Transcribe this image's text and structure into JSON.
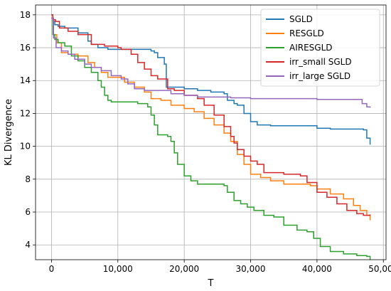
{
  "chart_data": {
    "type": "line",
    "title": "",
    "xlabel": "T",
    "ylabel": "KL Divergence",
    "xlim": [
      -2400,
      50400
    ],
    "ylim": [
      3.1,
      18.6
    ],
    "x_ticks": [
      0,
      10000,
      20000,
      30000,
      40000,
      50000
    ],
    "x_tick_labels": [
      "0",
      "10,000",
      "20,000",
      "30,000",
      "40,000",
      "50,000"
    ],
    "y_ticks": [
      4,
      6,
      8,
      10,
      12,
      14,
      16,
      18
    ],
    "y_tick_labels": [
      "4",
      "6",
      "8",
      "10",
      "12",
      "14",
      "16",
      "18"
    ],
    "grid": true,
    "legend_position": "top-right",
    "series": [
      {
        "name": "SGLD",
        "color": "#1f77b4",
        "x": [
          0,
          200,
          500,
          1000,
          2000,
          4000,
          5500,
          6000,
          7000,
          8500,
          10000,
          12000,
          14000,
          15000,
          15500,
          16000,
          17000,
          17300,
          18000,
          20000,
          22000,
          24000,
          26000,
          26500,
          27500,
          28000,
          29000,
          30000,
          31000,
          33000,
          35000,
          38000,
          40000,
          42000,
          44000,
          46000,
          47000,
          47500,
          48000
        ],
        "values": [
          18.0,
          17.6,
          17.4,
          17.3,
          17.2,
          16.9,
          16.4,
          16.2,
          16.0,
          15.9,
          15.9,
          15.9,
          15.9,
          15.8,
          15.7,
          15.4,
          15.0,
          13.6,
          13.6,
          13.5,
          13.4,
          13.3,
          13.2,
          12.8,
          12.6,
          12.5,
          12.0,
          11.5,
          11.3,
          11.25,
          11.25,
          11.25,
          11.1,
          11.05,
          11.05,
          11.05,
          11.0,
          10.5,
          10.1
        ]
      },
      {
        "name": "RESGLD",
        "color": "#ff7f0e",
        "x": [
          0,
          300,
          800,
          1500,
          2500,
          4000,
          5500,
          6500,
          7500,
          8500,
          10000,
          11000,
          12500,
          14000,
          15000,
          16500,
          18000,
          20000,
          21500,
          23000,
          24500,
          26000,
          27000,
          28000,
          29000,
          30000,
          31500,
          33000,
          35000,
          37500,
          39000,
          40000,
          42000,
          44000,
          45500,
          46500,
          47500,
          48000
        ],
        "values": [
          17.8,
          16.8,
          16.3,
          15.7,
          15.6,
          15.5,
          15.1,
          14.8,
          14.5,
          14.2,
          14.2,
          13.9,
          13.6,
          13.3,
          12.9,
          12.8,
          12.5,
          12.3,
          12.1,
          11.7,
          11.3,
          10.8,
          10.3,
          9.5,
          8.9,
          8.3,
          8.1,
          7.9,
          7.7,
          7.7,
          7.6,
          7.4,
          7.1,
          6.8,
          6.4,
          6.1,
          5.8,
          5.5
        ]
      },
      {
        "name": "AIRESGLD",
        "color": "#2ca02c",
        "x": [
          0,
          200,
          500,
          1000,
          2000,
          3000,
          4000,
          5000,
          6000,
          7000,
          7500,
          8000,
          8500,
          9000,
          11000,
          13000,
          14500,
          15000,
          15500,
          16000,
          17500,
          18000,
          18500,
          19000,
          20000,
          21000,
          22000,
          25000,
          26000,
          26500,
          27500,
          28500,
          29500,
          30500,
          32000,
          33500,
          35000,
          37000,
          38500,
          39500,
          40500,
          42000,
          44000,
          46000,
          47500,
          48000
        ],
        "values": [
          18.0,
          16.8,
          16.5,
          16.3,
          16.1,
          15.5,
          15.2,
          14.8,
          14.5,
          14.0,
          13.6,
          13.1,
          12.8,
          12.7,
          12.7,
          12.6,
          12.4,
          11.9,
          11.3,
          10.7,
          10.6,
          10.3,
          9.6,
          8.9,
          8.2,
          7.9,
          7.7,
          7.7,
          7.6,
          7.2,
          6.7,
          6.5,
          6.3,
          6.1,
          5.8,
          5.7,
          5.2,
          4.9,
          4.8,
          4.4,
          3.9,
          3.6,
          3.45,
          3.35,
          3.3,
          3.1
        ]
      },
      {
        "name": "irr_small SGLD",
        "color": "#d62728",
        "x": [
          0,
          200,
          600,
          1200,
          2500,
          4000,
          6000,
          8000,
          10000,
          10500,
          12000,
          13000,
          14000,
          15000,
          16000,
          17000,
          17500,
          18500,
          20000,
          22000,
          23000,
          24500,
          26000,
          27000,
          27500,
          28000,
          29000,
          30000,
          31000,
          32000,
          35000,
          37500,
          38500,
          40000,
          41500,
          43000,
          44500,
          46000,
          47000,
          48000
        ],
        "values": [
          18.0,
          17.7,
          17.6,
          17.2,
          17.0,
          16.8,
          16.2,
          16.1,
          16.0,
          15.9,
          15.6,
          15.1,
          14.7,
          14.3,
          14.1,
          14.1,
          13.5,
          13.4,
          13.1,
          12.9,
          12.5,
          11.9,
          11.2,
          10.6,
          10.2,
          9.8,
          9.4,
          9.1,
          8.9,
          8.4,
          8.3,
          8.2,
          7.8,
          7.2,
          6.9,
          6.5,
          6.1,
          5.9,
          5.8,
          5.85
        ]
      },
      {
        "name": "irr_large SGLD",
        "color": "#9467bd",
        "x": [
          0,
          300,
          700,
          1500,
          2500,
          3500,
          5000,
          6000,
          7500,
          9000,
          10500,
          11500,
          12500,
          14000,
          16000,
          18000,
          20000,
          22000,
          25000,
          27000,
          30000,
          33000,
          35000,
          38000,
          40000,
          42000,
          46000,
          46800,
          47500,
          48000
        ],
        "values": [
          17.8,
          16.6,
          16.0,
          15.8,
          15.6,
          15.3,
          15.0,
          14.8,
          14.6,
          14.3,
          14.1,
          13.8,
          13.5,
          13.4,
          13.4,
          13.2,
          13.1,
          13.0,
          13.0,
          12.95,
          12.9,
          12.9,
          12.9,
          12.9,
          12.85,
          12.85,
          12.85,
          12.6,
          12.4,
          12.35
        ]
      }
    ]
  }
}
